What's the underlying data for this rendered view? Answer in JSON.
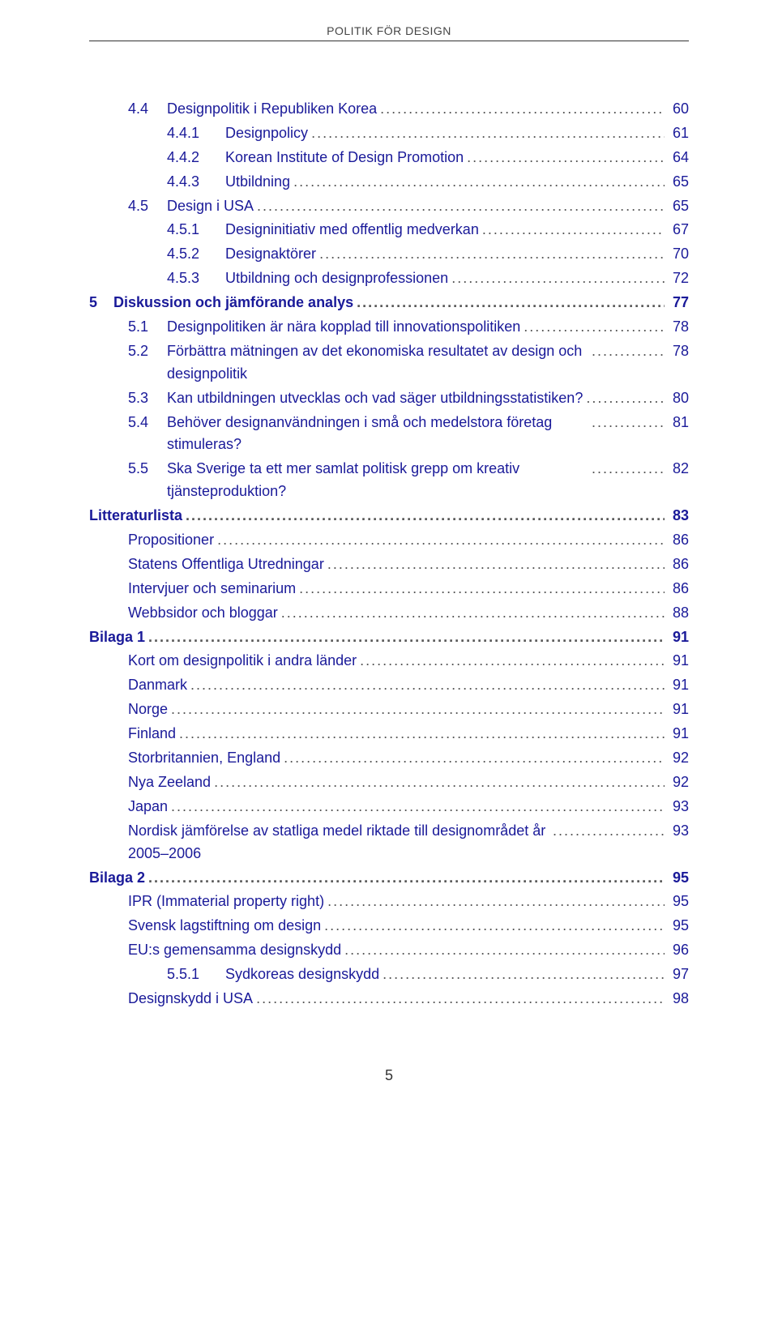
{
  "document": {
    "running_head": "POLITIK FÖR DESIGN",
    "page_number": "5",
    "link_color": "#1a1a99",
    "text_color": "#333333",
    "rule_color": "#333333",
    "background": "#ffffff",
    "base_font_size_pt": 13
  },
  "toc": [
    {
      "level": "sec",
      "num": "4.4",
      "label": "Designpolitik i Republiken Korea",
      "page": "60"
    },
    {
      "level": "subsub",
      "num": "4.4.1",
      "label": "Designpolicy",
      "page": "61"
    },
    {
      "level": "subsub",
      "num": "4.4.2",
      "label": "Korean Institute of Design Promotion",
      "page": "64"
    },
    {
      "level": "subsub",
      "num": "4.4.3",
      "label": "Utbildning",
      "page": "65"
    },
    {
      "level": "sec",
      "num": "4.5",
      "label": "Design i USA",
      "page": "65"
    },
    {
      "level": "subsub",
      "num": "4.5.1",
      "label": "Designinitiativ med offentlig medverkan",
      "page": "67"
    },
    {
      "level": "subsub",
      "num": "4.5.2",
      "label": "Designaktörer",
      "page": "70"
    },
    {
      "level": "subsub",
      "num": "4.5.3",
      "label": "Utbildning och designprofessionen",
      "page": "72"
    },
    {
      "level": "chap",
      "num": "5",
      "label": "Diskussion och jämförande analys",
      "page": "77"
    },
    {
      "level": "sec",
      "num": "5.1",
      "label": "Designpolitiken är nära kopplad till innovationspolitiken",
      "page": "78"
    },
    {
      "level": "sec",
      "num": "5.2",
      "label": "Förbättra mätningen av det ekonomiska resultatet av design och designpolitik",
      "page": "78"
    },
    {
      "level": "sec",
      "num": "5.3",
      "label": "Kan utbildningen utvecklas och vad säger utbildningsstatistiken?",
      "page": "80"
    },
    {
      "level": "sec",
      "num": "5.4",
      "label": "Behöver designanvändningen i små och medelstora företag stimuleras?",
      "page": "81"
    },
    {
      "level": "sec",
      "num": "5.5",
      "label": "Ska Sverige ta ett mer samlat politisk grepp om kreativ tjänsteproduktion?",
      "page": "82"
    },
    {
      "level": "chap",
      "num": "",
      "label": "Litteraturlista",
      "page": "83"
    },
    {
      "level": "sub",
      "num": "",
      "label": "Propositioner",
      "page": "86"
    },
    {
      "level": "sub",
      "num": "",
      "label": "Statens Offentliga Utredningar",
      "page": "86"
    },
    {
      "level": "sub",
      "num": "",
      "label": "Intervjuer och seminarium",
      "page": "86"
    },
    {
      "level": "sub",
      "num": "",
      "label": "Webbsidor och bloggar",
      "page": "88"
    },
    {
      "level": "chap",
      "num": "",
      "label": "Bilaga 1",
      "page": "91"
    },
    {
      "level": "sub",
      "num": "",
      "label": "Kort om designpolitik i andra länder",
      "page": "91"
    },
    {
      "level": "sub",
      "num": "",
      "label": "Danmark",
      "page": "91"
    },
    {
      "level": "sub",
      "num": "",
      "label": "Norge",
      "page": "91"
    },
    {
      "level": "sub",
      "num": "",
      "label": "Finland",
      "page": "91"
    },
    {
      "level": "sub",
      "num": "",
      "label": "Storbritannien, England",
      "page": "92"
    },
    {
      "level": "sub",
      "num": "",
      "label": "Nya Zeeland",
      "page": "92"
    },
    {
      "level": "sub",
      "num": "",
      "label": "Japan",
      "page": "93"
    },
    {
      "level": "sub",
      "num": "",
      "label": "Nordisk jämförelse av statliga medel riktade till designområdet år 2005–2006",
      "page": "93"
    },
    {
      "level": "chap",
      "num": "",
      "label": "Bilaga 2",
      "page": "95"
    },
    {
      "level": "sub",
      "num": "",
      "label": "IPR (Immaterial property right)",
      "page": "95"
    },
    {
      "level": "sub",
      "num": "",
      "label": "Svensk lagstiftning om design",
      "page": "95"
    },
    {
      "level": "sub",
      "num": "",
      "label": "EU:s gemensamma designskydd",
      "page": "96"
    },
    {
      "level": "subsub",
      "num": "5.5.1",
      "label": "Sydkoreas designskydd",
      "page": "97"
    },
    {
      "level": "sub",
      "num": "",
      "label": "Designskydd i USA",
      "page": "98"
    }
  ]
}
